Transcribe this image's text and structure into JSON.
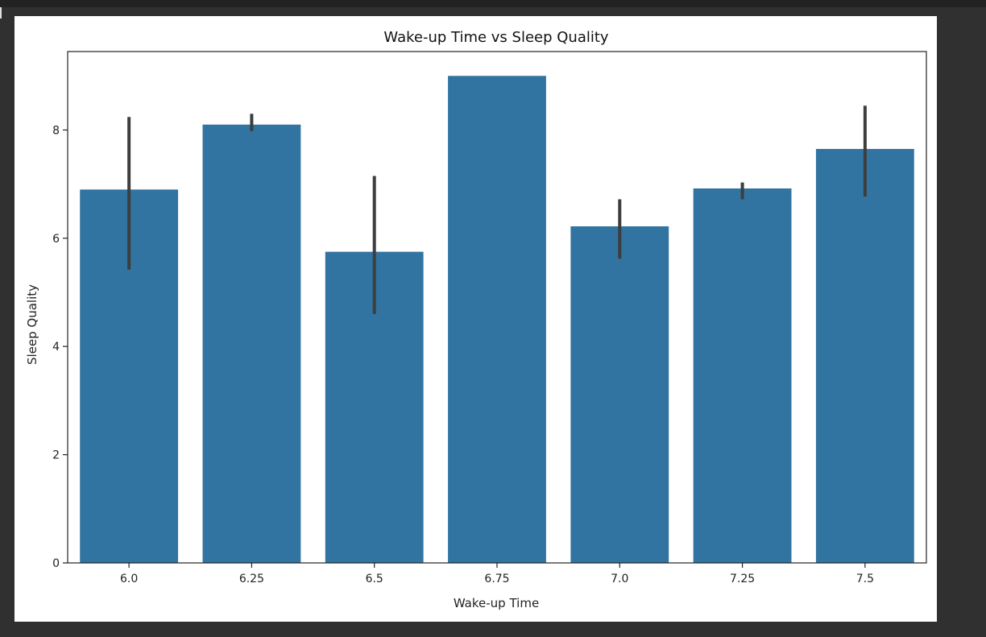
{
  "colors": {
    "bar": "#3274a1",
    "errorbar": "#3d3d3d",
    "axis": "#222222",
    "figure_bg": "#ffffff",
    "page_bg": "#303030"
  },
  "chart_data": {
    "type": "bar",
    "title": "Wake-up Time vs Sleep Quality",
    "xlabel": "Wake-up Time",
    "ylabel": "Sleep Quality",
    "categories": [
      "6.0",
      "6.25",
      "6.5",
      "6.75",
      "7.0",
      "7.25",
      "7.5"
    ],
    "values": [
      6.9,
      8.1,
      5.75,
      9.0,
      6.22,
      6.92,
      7.65
    ],
    "error_low": [
      5.42,
      7.98,
      4.6,
      9.0,
      5.62,
      6.72,
      6.77
    ],
    "error_high": [
      8.24,
      8.3,
      7.15,
      9.0,
      6.72,
      7.03,
      8.45
    ],
    "ylim": [
      0,
      9.45
    ],
    "yticks": [
      0,
      2,
      4,
      6,
      8
    ],
    "grid": false,
    "legend": false
  }
}
